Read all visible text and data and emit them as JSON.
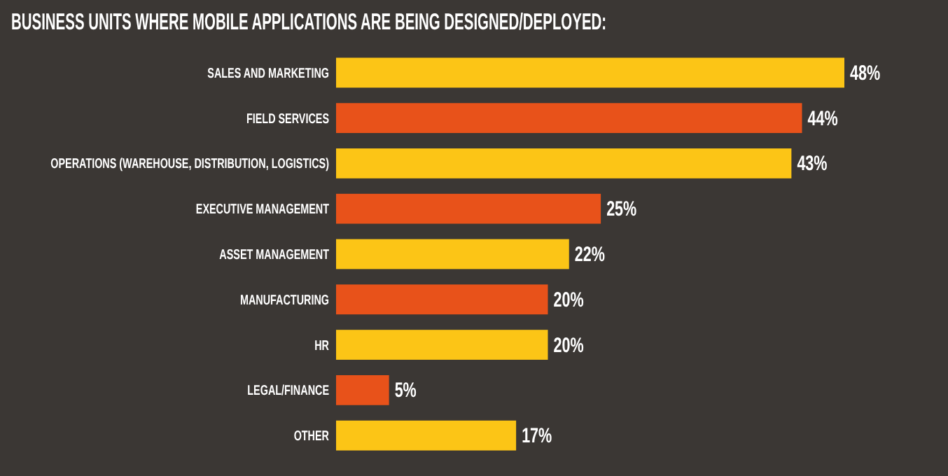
{
  "chart_data": {
    "type": "bar",
    "orientation": "horizontal",
    "title": "BUSINESS UNITS WHERE MOBILE APPLICATIONS ARE BEING DESIGNED/DEPLOYED:",
    "categories": [
      "SALES AND MARKETING",
      "FIELD SERVICES",
      "OPERATIONS (WAREHOUSE, DISTRIBUTION, LOGISTICS)",
      "EXECUTIVE MANAGEMENT",
      "ASSET MANAGEMENT",
      "MANUFACTURING",
      "HR",
      "LEGAL/FINANCE",
      "OTHER"
    ],
    "values": [
      48,
      44,
      43,
      25,
      22,
      20,
      20,
      5,
      17
    ],
    "value_labels": [
      "48%",
      "44%",
      "43%",
      "25%",
      "22%",
      "20%",
      "20%",
      "5%",
      "17%"
    ],
    "colors": [
      "#fcc516",
      "#e8521a",
      "#fcc516",
      "#e8521a",
      "#fcc516",
      "#e8521a",
      "#fcc516",
      "#e8521a",
      "#fcc516"
    ],
    "xlim": [
      0,
      48
    ]
  }
}
